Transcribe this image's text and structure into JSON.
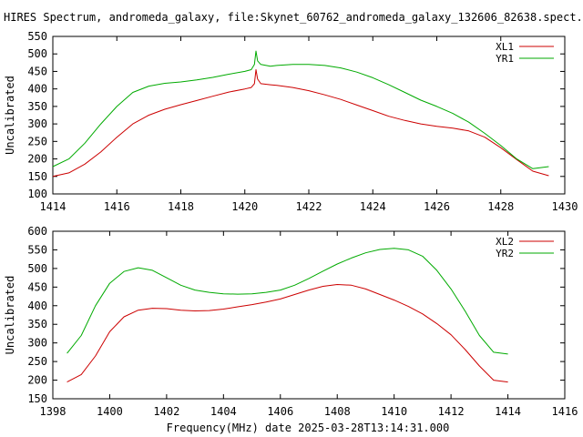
{
  "title": "HIRES Spectrum, andromeda_galaxy, file:Skynet_60762_andromeda_galaxy_132606_82638.spect.cyb.",
  "xlabel": "Frequency(MHz) date 2025-03-28T13:14:31.000",
  "colors": {
    "red": "#cc0000",
    "green": "#00aa00"
  },
  "chart_data": [
    {
      "type": "line",
      "ylabel": "Uncalibrated",
      "xlim": [
        1414,
        1430
      ],
      "ylim": [
        100,
        550
      ],
      "xticks": [
        "1414",
        "1416",
        "1418",
        "1420",
        "1422",
        "1424",
        "1426",
        "1428",
        "1430"
      ],
      "yticks": [
        "100",
        "150",
        "200",
        "250",
        "300",
        "350",
        "400",
        "450",
        "500",
        "550"
      ],
      "legend_position": "top-right",
      "grid": false,
      "series": [
        {
          "name": "XL1",
          "color": "#cc0000",
          "points": [
            [
              1414.0,
              150
            ],
            [
              1414.5,
              160
            ],
            [
              1415.0,
              185
            ],
            [
              1415.5,
              220
            ],
            [
              1416.0,
              262
            ],
            [
              1416.5,
              300
            ],
            [
              1417.0,
              325
            ],
            [
              1417.5,
              342
            ],
            [
              1418.0,
              355
            ],
            [
              1418.5,
              367
            ],
            [
              1419.0,
              379
            ],
            [
              1419.5,
              391
            ],
            [
              1420.0,
              400
            ],
            [
              1420.2,
              404
            ],
            [
              1420.3,
              415
            ],
            [
              1420.35,
              455
            ],
            [
              1420.4,
              428
            ],
            [
              1420.5,
              415
            ],
            [
              1420.8,
              412
            ],
            [
              1421.0,
              410
            ],
            [
              1421.5,
              404
            ],
            [
              1422.0,
              395
            ],
            [
              1422.5,
              383
            ],
            [
              1423.0,
              370
            ],
            [
              1423.5,
              354
            ],
            [
              1424.0,
              338
            ],
            [
              1424.5,
              322
            ],
            [
              1425.0,
              310
            ],
            [
              1425.5,
              300
            ],
            [
              1426.0,
              293
            ],
            [
              1426.5,
              288
            ],
            [
              1427.0,
              280
            ],
            [
              1427.5,
              262
            ],
            [
              1428.0,
              232
            ],
            [
              1428.5,
              198
            ],
            [
              1429.0,
              165
            ],
            [
              1429.5,
              152
            ]
          ]
        },
        {
          "name": "YR1",
          "color": "#00aa00",
          "points": [
            [
              1414.0,
              178
            ],
            [
              1414.5,
              200
            ],
            [
              1415.0,
              245
            ],
            [
              1415.5,
              300
            ],
            [
              1416.0,
              350
            ],
            [
              1416.5,
              390
            ],
            [
              1417.0,
              408
            ],
            [
              1417.5,
              416
            ],
            [
              1418.0,
              420
            ],
            [
              1418.5,
              426
            ],
            [
              1419.0,
              433
            ],
            [
              1419.5,
              442
            ],
            [
              1420.0,
              450
            ],
            [
              1420.2,
              455
            ],
            [
              1420.3,
              470
            ],
            [
              1420.35,
              508
            ],
            [
              1420.4,
              480
            ],
            [
              1420.5,
              470
            ],
            [
              1420.8,
              465
            ],
            [
              1421.0,
              467
            ],
            [
              1421.5,
              470
            ],
            [
              1422.0,
              470
            ],
            [
              1422.5,
              467
            ],
            [
              1423.0,
              460
            ],
            [
              1423.5,
              448
            ],
            [
              1424.0,
              432
            ],
            [
              1424.5,
              412
            ],
            [
              1425.0,
              390
            ],
            [
              1425.5,
              368
            ],
            [
              1426.0,
              350
            ],
            [
              1426.5,
              330
            ],
            [
              1427.0,
              305
            ],
            [
              1427.5,
              273
            ],
            [
              1428.0,
              238
            ],
            [
              1428.5,
              200
            ],
            [
              1429.0,
              172
            ],
            [
              1429.5,
              178
            ]
          ]
        }
      ]
    },
    {
      "type": "line",
      "ylabel": "Uncalibrated",
      "xlim": [
        1398,
        1416
      ],
      "ylim": [
        150,
        600
      ],
      "xticks": [
        "1398",
        "1400",
        "1402",
        "1404",
        "1406",
        "1408",
        "1410",
        "1412",
        "1414",
        "1416"
      ],
      "yticks": [
        "150",
        "200",
        "250",
        "300",
        "350",
        "400",
        "450",
        "500",
        "550",
        "600"
      ],
      "legend_position": "top-right",
      "grid": false,
      "series": [
        {
          "name": "XL2",
          "color": "#cc0000",
          "points": [
            [
              1398.5,
              195
            ],
            [
              1399.0,
              215
            ],
            [
              1399.5,
              265
            ],
            [
              1400.0,
              330
            ],
            [
              1400.5,
              370
            ],
            [
              1401.0,
              388
            ],
            [
              1401.5,
              393
            ],
            [
              1402.0,
              392
            ],
            [
              1402.5,
              388
            ],
            [
              1403.0,
              386
            ],
            [
              1403.5,
              387
            ],
            [
              1404.0,
              391
            ],
            [
              1404.5,
              397
            ],
            [
              1405.0,
              403
            ],
            [
              1405.5,
              410
            ],
            [
              1406.0,
              418
            ],
            [
              1406.5,
              430
            ],
            [
              1407.0,
              442
            ],
            [
              1407.5,
              452
            ],
            [
              1408.0,
              457
            ],
            [
              1408.5,
              455
            ],
            [
              1409.0,
              445
            ],
            [
              1409.5,
              430
            ],
            [
              1410.0,
              415
            ],
            [
              1410.5,
              398
            ],
            [
              1411.0,
              378
            ],
            [
              1411.5,
              352
            ],
            [
              1412.0,
              322
            ],
            [
              1412.5,
              282
            ],
            [
              1413.0,
              238
            ],
            [
              1413.5,
              200
            ],
            [
              1414.0,
              195
            ]
          ]
        },
        {
          "name": "YR2",
          "color": "#00aa00",
          "points": [
            [
              1398.5,
              272
            ],
            [
              1399.0,
              320
            ],
            [
              1399.5,
              400
            ],
            [
              1400.0,
              460
            ],
            [
              1400.5,
              492
            ],
            [
              1401.0,
              502
            ],
            [
              1401.5,
              495
            ],
            [
              1402.0,
              475
            ],
            [
              1402.5,
              455
            ],
            [
              1403.0,
              442
            ],
            [
              1403.5,
              436
            ],
            [
              1404.0,
              432
            ],
            [
              1404.5,
              431
            ],
            [
              1405.0,
              432
            ],
            [
              1405.5,
              436
            ],
            [
              1406.0,
              442
            ],
            [
              1406.5,
              455
            ],
            [
              1407.0,
              473
            ],
            [
              1407.5,
              493
            ],
            [
              1408.0,
              512
            ],
            [
              1408.5,
              528
            ],
            [
              1409.0,
              542
            ],
            [
              1409.5,
              551
            ],
            [
              1410.0,
              554
            ],
            [
              1410.5,
              550
            ],
            [
              1411.0,
              533
            ],
            [
              1411.5,
              495
            ],
            [
              1412.0,
              445
            ],
            [
              1412.5,
              385
            ],
            [
              1413.0,
              320
            ],
            [
              1413.5,
              275
            ],
            [
              1414.0,
              270
            ]
          ]
        }
      ]
    }
  ]
}
